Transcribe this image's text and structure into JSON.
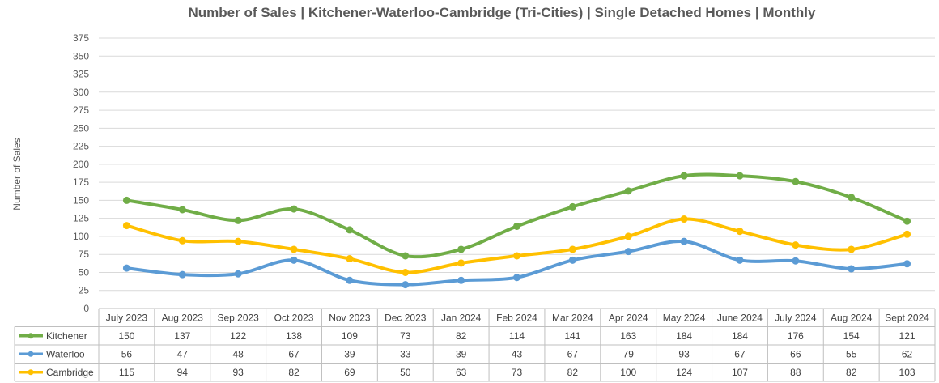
{
  "chart_data": {
    "type": "line",
    "title": "Number of Sales | Kitchener-Waterloo-Cambridge (Tri-Cities) | Single Detached Homes | Monthly",
    "xlabel": "",
    "ylabel": "Number of Sales",
    "ylim": [
      0,
      375
    ],
    "ystep": 25,
    "grid": true,
    "legend": "data-table-bottom",
    "categories": [
      "July 2023",
      "Aug 2023",
      "Sep 2023",
      "Oct 2023",
      "Nov 2023",
      "Dec 2023",
      "Jan 2024",
      "Feb 2024",
      "Mar 2024",
      "Apr 2024",
      "May 2024",
      "June 2024",
      "July 2024",
      "Aug 2024",
      "Sept 2024"
    ],
    "series": [
      {
        "name": "Kitchener",
        "color": "#70ad47",
        "values": [
          150,
          137,
          122,
          138,
          109,
          73,
          82,
          114,
          141,
          163,
          184,
          184,
          176,
          154,
          121
        ]
      },
      {
        "name": "Waterloo",
        "color": "#5b9bd5",
        "values": [
          56,
          47,
          48,
          67,
          39,
          33,
          39,
          43,
          67,
          79,
          93,
          67,
          66,
          55,
          62
        ]
      },
      {
        "name": "Cambridge",
        "color": "#ffc000",
        "values": [
          115,
          94,
          93,
          82,
          69,
          50,
          63,
          73,
          82,
          100,
          124,
          107,
          88,
          82,
          103
        ]
      }
    ]
  }
}
